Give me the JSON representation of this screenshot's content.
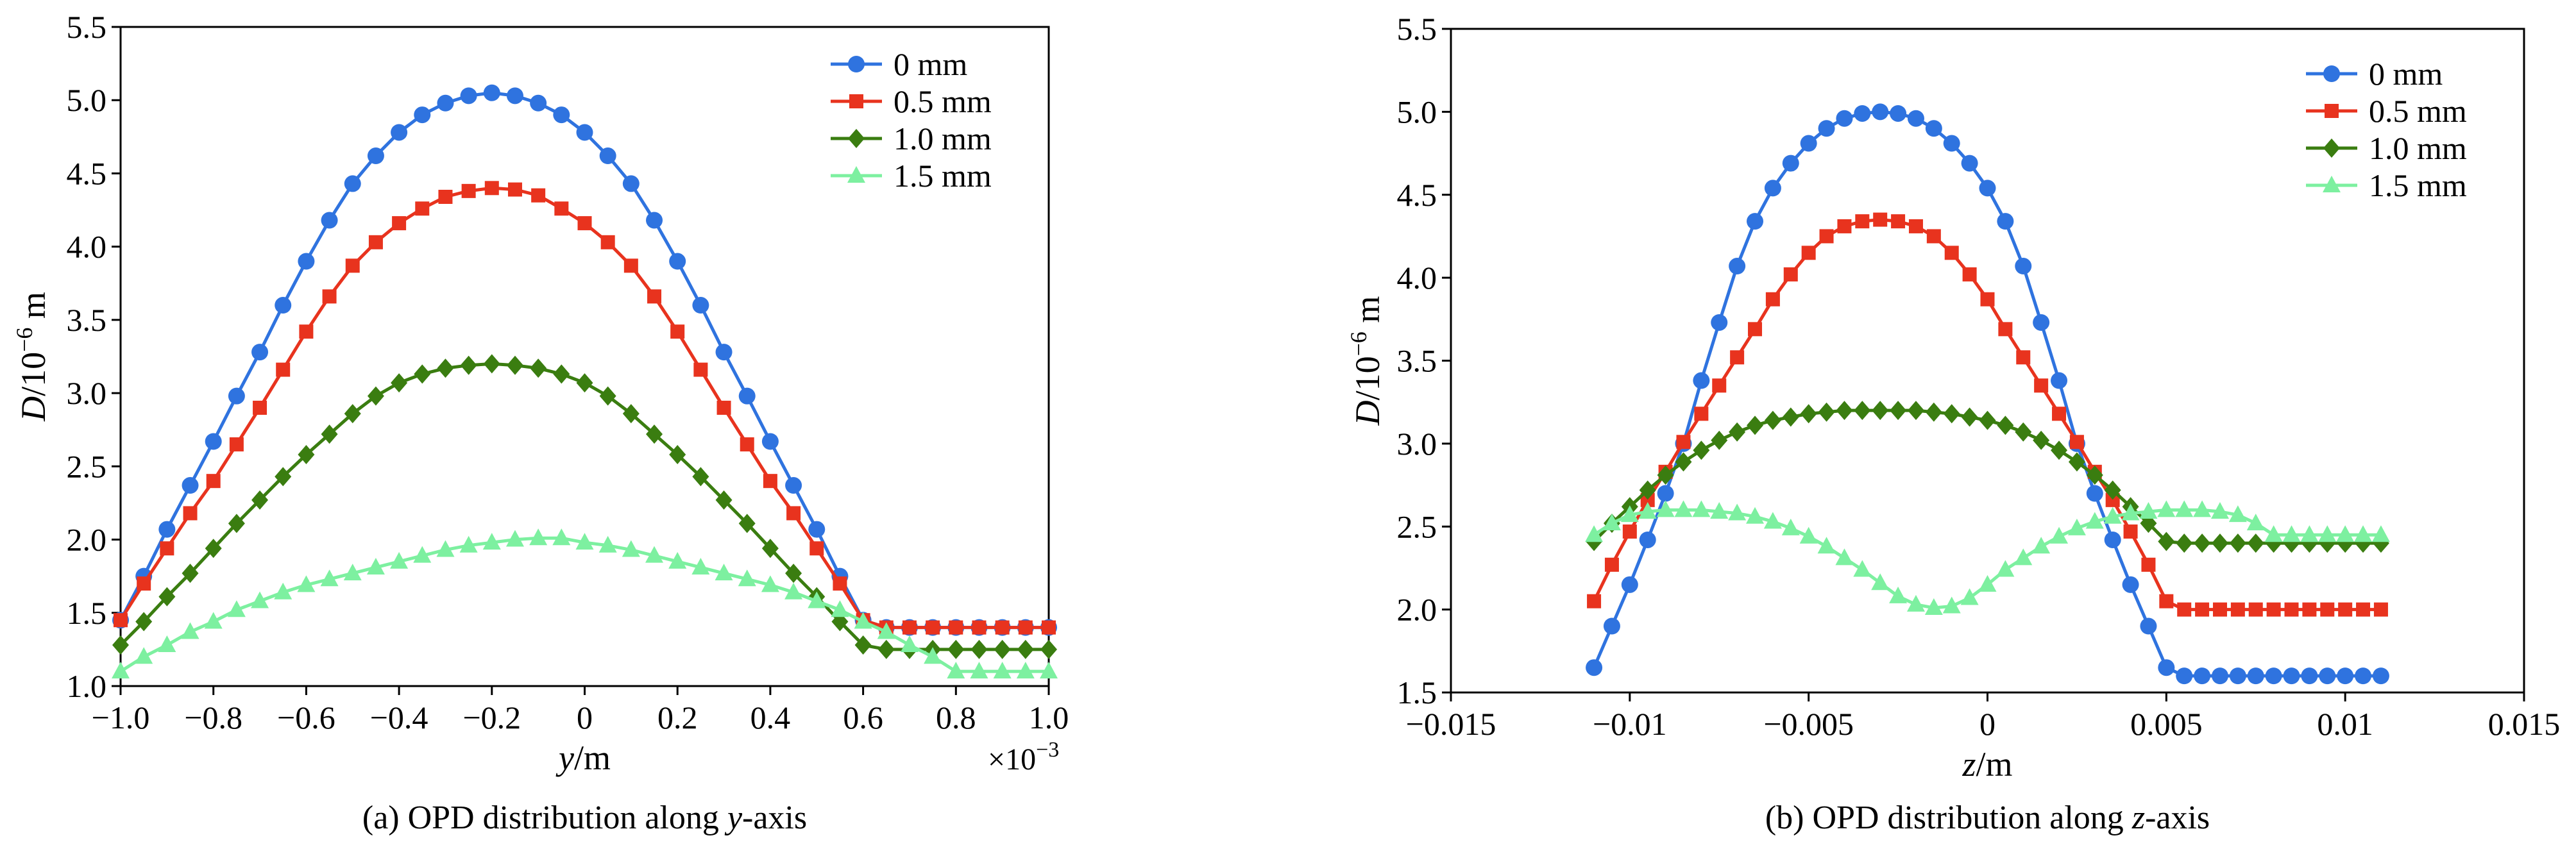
{
  "chart_data": [
    {
      "type": "line",
      "caption": "(a) OPD distribution along y-axis",
      "caption_parts": [
        "(a) OPD distribution along ",
        "y",
        "-axis"
      ],
      "xlabel": "y/m",
      "xlabel_parts": [
        "y",
        "/m"
      ],
      "ylabel": "D/10^-6 m",
      "ylabel_parts": [
        "D",
        "/10",
        "−6",
        " m"
      ],
      "x_multiplier": "×10−3",
      "x_multiplier_parts": [
        "×10",
        "−3"
      ],
      "xlim": [
        -1.0,
        1.0
      ],
      "ylim": [
        1.0,
        5.5
      ],
      "xticks": [
        -1.0,
        -0.8,
        -0.6,
        -0.4,
        -0.2,
        0,
        0.2,
        0.4,
        0.6,
        0.8,
        1.0
      ],
      "xtick_labels": [
        "−1.0",
        "−0.8",
        "−0.6",
        "−0.4",
        "−0.2",
        "0",
        "0.2",
        "0.4",
        "0.6",
        "0.8",
        "1.0"
      ],
      "yticks": [
        1.0,
        1.5,
        2.0,
        2.5,
        3.0,
        3.5,
        4.0,
        4.5,
        5.0,
        5.5
      ],
      "ytick_labels": [
        "1.0",
        "1.5",
        "2.0",
        "2.5",
        "3.0",
        "3.5",
        "4.0",
        "4.5",
        "5.0",
        "5.5"
      ],
      "legend_position": "top-right",
      "grid": false,
      "series": [
        {
          "name": "0 mm",
          "color": "#2f73df",
          "marker": "circle",
          "x": [
            -1.0,
            -0.95,
            -0.9,
            -0.85,
            -0.8,
            -0.75,
            -0.7,
            -0.65,
            -0.6,
            -0.55,
            -0.5,
            -0.45,
            -0.4,
            -0.35,
            -0.3,
            -0.25,
            -0.2,
            -0.15,
            -0.1,
            -0.05,
            0,
            0.05,
            0.1,
            0.15,
            0.2,
            0.25,
            0.3,
            0.35,
            0.4,
            0.45,
            0.5,
            0.55,
            0.6,
            0.65,
            0.7,
            0.75,
            0.8,
            0.85,
            0.9,
            0.95,
            1.0
          ],
          "y": [
            1.45,
            1.75,
            2.07,
            2.37,
            2.67,
            2.98,
            3.28,
            3.6,
            3.9,
            4.18,
            4.43,
            4.62,
            4.78,
            4.9,
            4.98,
            5.03,
            5.05,
            5.03,
            4.98,
            4.9,
            4.78,
            4.62,
            4.43,
            4.18,
            3.9,
            3.6,
            3.28,
            2.98,
            2.67,
            2.37,
            2.07,
            1.75,
            1.45,
            1.4,
            1.4,
            1.4,
            1.4,
            1.4,
            1.4,
            1.4,
            1.4
          ]
        },
        {
          "name": "0.5 mm",
          "color": "#e8331e",
          "marker": "square",
          "x": [
            -1.0,
            -0.95,
            -0.9,
            -0.85,
            -0.8,
            -0.75,
            -0.7,
            -0.65,
            -0.6,
            -0.55,
            -0.5,
            -0.45,
            -0.4,
            -0.35,
            -0.3,
            -0.25,
            -0.2,
            -0.15,
            -0.1,
            -0.05,
            0,
            0.05,
            0.1,
            0.15,
            0.2,
            0.25,
            0.3,
            0.35,
            0.4,
            0.45,
            0.5,
            0.55,
            0.6,
            0.65,
            0.7,
            0.75,
            0.8,
            0.85,
            0.9,
            0.95,
            1.0
          ],
          "y": [
            1.45,
            1.7,
            1.94,
            2.18,
            2.4,
            2.65,
            2.9,
            3.16,
            3.42,
            3.66,
            3.87,
            4.03,
            4.16,
            4.26,
            4.34,
            4.38,
            4.4,
            4.39,
            4.35,
            4.26,
            4.16,
            4.03,
            3.87,
            3.66,
            3.42,
            3.16,
            2.9,
            2.65,
            2.4,
            2.18,
            1.94,
            1.7,
            1.45,
            1.4,
            1.4,
            1.4,
            1.4,
            1.4,
            1.4,
            1.4,
            1.4
          ]
        },
        {
          "name": "1.0 mm",
          "color": "#3a7d10",
          "marker": "diamond",
          "x": [
            -1.0,
            -0.95,
            -0.9,
            -0.85,
            -0.8,
            -0.75,
            -0.7,
            -0.65,
            -0.6,
            -0.55,
            -0.5,
            -0.45,
            -0.4,
            -0.35,
            -0.3,
            -0.25,
            -0.2,
            -0.15,
            -0.1,
            -0.05,
            0,
            0.05,
            0.1,
            0.15,
            0.2,
            0.25,
            0.3,
            0.35,
            0.4,
            0.45,
            0.5,
            0.55,
            0.6,
            0.65,
            0.7,
            0.75,
            0.8,
            0.85,
            0.9,
            0.95,
            1.0
          ],
          "y": [
            1.28,
            1.44,
            1.61,
            1.77,
            1.94,
            2.11,
            2.27,
            2.43,
            2.58,
            2.72,
            2.86,
            2.98,
            3.07,
            3.13,
            3.17,
            3.19,
            3.2,
            3.19,
            3.17,
            3.13,
            3.07,
            2.98,
            2.86,
            2.72,
            2.58,
            2.43,
            2.27,
            2.11,
            1.94,
            1.77,
            1.61,
            1.44,
            1.28,
            1.25,
            1.25,
            1.25,
            1.25,
            1.25,
            1.25,
            1.25,
            1.25
          ]
        },
        {
          "name": "1.5 mm",
          "color": "#7df0a0",
          "marker": "triangle",
          "x": [
            -1.0,
            -0.95,
            -0.9,
            -0.85,
            -0.8,
            -0.75,
            -0.7,
            -0.65,
            -0.6,
            -0.55,
            -0.5,
            -0.45,
            -0.4,
            -0.35,
            -0.3,
            -0.25,
            -0.2,
            -0.15,
            -0.1,
            -0.05,
            0,
            0.05,
            0.1,
            0.15,
            0.2,
            0.25,
            0.3,
            0.35,
            0.4,
            0.45,
            0.5,
            0.55,
            0.6,
            0.65,
            0.7,
            0.75,
            0.8,
            0.85,
            0.9,
            0.95,
            1.0
          ],
          "y": [
            1.1,
            1.2,
            1.28,
            1.37,
            1.44,
            1.52,
            1.58,
            1.64,
            1.69,
            1.73,
            1.77,
            1.81,
            1.85,
            1.89,
            1.93,
            1.96,
            1.98,
            2.0,
            2.01,
            2.01,
            1.98,
            1.96,
            1.93,
            1.89,
            1.85,
            1.81,
            1.77,
            1.73,
            1.69,
            1.64,
            1.58,
            1.52,
            1.44,
            1.37,
            1.28,
            1.2,
            1.1,
            1.1,
            1.1,
            1.1,
            1.1
          ]
        }
      ]
    },
    {
      "type": "line",
      "caption": "(b) OPD distribution along z-axis",
      "caption_parts": [
        "(b) OPD distribution along ",
        "z",
        "-axis"
      ],
      "xlabel": "z/m",
      "xlabel_parts": [
        "z",
        "/m"
      ],
      "ylabel": "D/10^-6 m",
      "ylabel_parts": [
        "D",
        "/10",
        "−6",
        " m"
      ],
      "xlim": [
        -0.015,
        0.015
      ],
      "ylim": [
        1.5,
        5.5
      ],
      "xticks": [
        -0.015,
        -0.01,
        -0.005,
        0,
        0.005,
        0.01,
        0.015
      ],
      "xtick_labels": [
        "−0.015",
        "−0.01",
        "−0.005",
        "0",
        "0.005",
        "0.01",
        "0.015"
      ],
      "yticks": [
        1.5,
        2.0,
        2.5,
        3.0,
        3.5,
        4.0,
        4.5,
        5.0,
        5.5
      ],
      "ytick_labels": [
        "1.5",
        "2.0",
        "2.5",
        "3.0",
        "3.5",
        "4.0",
        "4.5",
        "5.0",
        "5.5"
      ],
      "legend_position": "top-right",
      "grid": false,
      "series": [
        {
          "name": "0 mm",
          "color": "#2f73df",
          "marker": "circle",
          "x": [
            -0.011,
            -0.0105,
            -0.01,
            -0.0095,
            -0.009,
            -0.0085,
            -0.008,
            -0.0075,
            -0.007,
            -0.0065,
            -0.006,
            -0.0055,
            -0.005,
            -0.0045,
            -0.004,
            -0.0035,
            -0.003,
            -0.0025,
            -0.002,
            -0.0015,
            -0.001,
            -0.0005,
            0,
            0.0005,
            0.001,
            0.0015,
            0.002,
            0.0025,
            0.003,
            0.0035,
            0.004,
            0.0045,
            0.005,
            0.0055,
            0.006,
            0.0065,
            0.007,
            0.0075,
            0.008,
            0.0085,
            0.009,
            0.0095,
            0.01,
            0.0105,
            0.011
          ],
          "y": [
            1.65,
            1.9,
            2.15,
            2.42,
            2.7,
            3.0,
            3.38,
            3.73,
            4.07,
            4.34,
            4.54,
            4.69,
            4.81,
            4.9,
            4.96,
            4.99,
            5.0,
            4.99,
            4.96,
            4.9,
            4.81,
            4.69,
            4.54,
            4.34,
            4.07,
            3.73,
            3.38,
            3.0,
            2.7,
            2.42,
            2.15,
            1.9,
            1.65,
            1.6,
            1.6,
            1.6,
            1.6,
            1.6,
            1.6,
            1.6,
            1.6,
            1.6,
            1.6,
            1.6,
            1.6
          ]
        },
        {
          "name": "0.5 mm",
          "color": "#e8331e",
          "marker": "square",
          "x": [
            -0.011,
            -0.0105,
            -0.01,
            -0.0095,
            -0.009,
            -0.0085,
            -0.008,
            -0.0075,
            -0.007,
            -0.0065,
            -0.006,
            -0.0055,
            -0.005,
            -0.0045,
            -0.004,
            -0.0035,
            -0.003,
            -0.0025,
            -0.002,
            -0.0015,
            -0.001,
            -0.0005,
            0,
            0.0005,
            0.001,
            0.0015,
            0.002,
            0.0025,
            0.003,
            0.0035,
            0.004,
            0.0045,
            0.005,
            0.0055,
            0.006,
            0.0065,
            0.007,
            0.0075,
            0.008,
            0.0085,
            0.009,
            0.0095,
            0.01,
            0.0105,
            0.011
          ],
          "y": [
            2.05,
            2.27,
            2.47,
            2.66,
            2.83,
            3.01,
            3.18,
            3.35,
            3.52,
            3.69,
            3.87,
            4.02,
            4.15,
            4.25,
            4.31,
            4.34,
            4.35,
            4.34,
            4.31,
            4.25,
            4.15,
            4.02,
            3.87,
            3.69,
            3.52,
            3.35,
            3.18,
            3.01,
            2.83,
            2.66,
            2.47,
            2.27,
            2.05,
            2.0,
            2.0,
            2.0,
            2.0,
            2.0,
            2.0,
            2.0,
            2.0,
            2.0,
            2.0,
            2.0,
            2.0
          ]
        },
        {
          "name": "1.0 mm",
          "color": "#3a7d10",
          "marker": "diamond",
          "x": [
            -0.011,
            -0.0105,
            -0.01,
            -0.0095,
            -0.009,
            -0.0085,
            -0.008,
            -0.0075,
            -0.007,
            -0.0065,
            -0.006,
            -0.0055,
            -0.005,
            -0.0045,
            -0.004,
            -0.0035,
            -0.003,
            -0.0025,
            -0.002,
            -0.0015,
            -0.001,
            -0.0005,
            0,
            0.0005,
            0.001,
            0.0015,
            0.002,
            0.0025,
            0.003,
            0.0035,
            0.004,
            0.0045,
            0.005,
            0.0055,
            0.006,
            0.0065,
            0.007,
            0.0075,
            0.008,
            0.0085,
            0.009,
            0.0095,
            0.01,
            0.0105,
            0.011
          ],
          "y": [
            2.41,
            2.52,
            2.62,
            2.72,
            2.81,
            2.89,
            2.96,
            3.02,
            3.07,
            3.11,
            3.14,
            3.16,
            3.18,
            3.19,
            3.2,
            3.2,
            3.2,
            3.2,
            3.2,
            3.19,
            3.18,
            3.16,
            3.14,
            3.11,
            3.07,
            3.02,
            2.96,
            2.89,
            2.81,
            2.72,
            2.62,
            2.52,
            2.41,
            2.4,
            2.4,
            2.4,
            2.4,
            2.4,
            2.4,
            2.4,
            2.4,
            2.4,
            2.4,
            2.4,
            2.4
          ]
        },
        {
          "name": "1.5 mm",
          "color": "#7df0a0",
          "marker": "triangle",
          "x": [
            -0.011,
            -0.0105,
            -0.01,
            -0.0095,
            -0.009,
            -0.0085,
            -0.008,
            -0.0075,
            -0.007,
            -0.0065,
            -0.006,
            -0.0055,
            -0.005,
            -0.0045,
            -0.004,
            -0.0035,
            -0.003,
            -0.0025,
            -0.002,
            -0.0015,
            -0.001,
            -0.0005,
            0,
            0.0005,
            0.001,
            0.0015,
            0.002,
            0.0025,
            0.003,
            0.0035,
            0.004,
            0.0045,
            0.005,
            0.0055,
            0.006,
            0.0065,
            0.007,
            0.0075,
            0.008,
            0.0085,
            0.009,
            0.0095,
            0.01,
            0.0105,
            0.011
          ],
          "y": [
            2.45,
            2.52,
            2.57,
            2.59,
            2.6,
            2.6,
            2.6,
            2.59,
            2.58,
            2.56,
            2.53,
            2.49,
            2.44,
            2.38,
            2.31,
            2.24,
            2.16,
            2.08,
            2.03,
            2.01,
            2.02,
            2.07,
            2.15,
            2.24,
            2.31,
            2.38,
            2.44,
            2.49,
            2.53,
            2.56,
            2.58,
            2.59,
            2.6,
            2.6,
            2.6,
            2.59,
            2.57,
            2.52,
            2.45,
            2.45,
            2.45,
            2.45,
            2.45,
            2.45,
            2.45
          ]
        }
      ]
    }
  ]
}
